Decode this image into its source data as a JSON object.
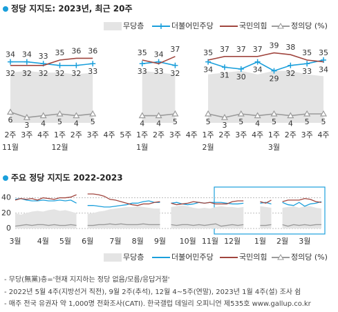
{
  "chart_data": [
    {
      "type": "line",
      "title": "정당 지지도: 2023년, 최근 20주",
      "categories": [
        "2주",
        "3주",
        "4주",
        "1주",
        "2주",
        "3주",
        "4주",
        "5주",
        "1주",
        "2주",
        "3주",
        "4주",
        "1주",
        "2주",
        "3주",
        "4주",
        "1주",
        "2주",
        "3주",
        "4주"
      ],
      "months": [
        "11월",
        null,
        null,
        "12월",
        null,
        null,
        null,
        null,
        "1월",
        null,
        null,
        null,
        "2월",
        null,
        null,
        null,
        "3월",
        null,
        null,
        null
      ],
      "ylim": [
        0,
        40
      ],
      "series": [
        {
          "name": "무당층",
          "color": "#e4e4e4",
          "kind": "area",
          "values": [
            28,
            29,
            28,
            28,
            27,
            28,
            null,
            null,
            29,
            28,
            27,
            null,
            27,
            28,
            29,
            27,
            29,
            29,
            27,
            26
          ]
        },
        {
          "name": "더불어민주당",
          "color": "#1a9fdb",
          "kind": "line",
          "marker": "plus",
          "labels": true,
          "values": [
            34,
            34,
            33,
            32,
            32,
            33,
            null,
            null,
            33,
            34,
            32,
            null,
            34,
            31,
            30,
            34,
            29,
            32,
            33,
            35
          ]
        },
        {
          "name": "국민의힘",
          "color": "#a0453e",
          "kind": "line",
          "labels": true,
          "values": [
            32,
            32,
            32,
            35,
            36,
            36,
            null,
            null,
            35,
            33,
            37,
            null,
            35,
            37,
            37,
            37,
            39,
            38,
            35,
            34
          ]
        },
        {
          "name": "정의당 (%)",
          "color": "#9a9a9a",
          "kind": "line",
          "marker": "triangle",
          "labels": true,
          "values": [
            6,
            3,
            4,
            5,
            4,
            5,
            null,
            null,
            4,
            4,
            5,
            null,
            5,
            3,
            5,
            4,
            5,
            4,
            5,
            5
          ]
        }
      ]
    },
    {
      "type": "line",
      "title": "주요 정당 지지도 2022-2023",
      "categories": [
        "3월",
        null,
        null,
        null,
        null,
        "4월",
        null,
        null,
        null,
        "5월",
        null,
        null,
        null,
        "6월",
        null,
        null,
        null,
        null,
        "7월",
        null,
        null,
        null,
        "8월",
        null,
        null,
        null,
        "9월",
        null,
        null,
        null,
        null,
        "10월",
        null,
        null,
        null,
        "11월",
        null,
        null,
        null,
        "12월",
        null,
        null,
        null,
        null,
        "1월",
        null,
        null,
        null,
        "2월",
        null,
        null,
        null,
        "3월",
        null,
        null,
        null
      ],
      "ylim": [
        0,
        45
      ],
      "yticks": [
        0,
        20,
        40
      ],
      "grid": true,
      "series": [
        {
          "name": "무당층",
          "color": "#e4e4e4",
          "kind": "area",
          "values": [
            20,
            18,
            20,
            22,
            23,
            22,
            24,
            25,
            23,
            24,
            22,
            20,
            null,
            19,
            20,
            22,
            23,
            25,
            26,
            27,
            28,
            28,
            29,
            28,
            27,
            26,
            26,
            null,
            28,
            29,
            30,
            29,
            27,
            26,
            27,
            26,
            28,
            29,
            28,
            28,
            27,
            28,
            null,
            null,
            29,
            28,
            27,
            null,
            27,
            28,
            29,
            27,
            29,
            29,
            27,
            26
          ]
        },
        {
          "name": "더불어민주당",
          "color": "#1a9fdb",
          "kind": "line",
          "values": [
            38,
            39,
            37,
            36,
            36,
            37,
            36,
            36,
            37,
            36,
            37,
            33,
            null,
            30,
            30,
            29,
            28,
            28,
            29,
            30,
            31,
            33,
            33,
            35,
            36,
            34,
            34,
            null,
            33,
            34,
            32,
            31,
            32,
            34,
            33,
            34,
            34,
            34,
            33,
            32,
            32,
            33,
            null,
            null,
            33,
            34,
            32,
            null,
            34,
            31,
            30,
            34,
            29,
            32,
            33,
            35
          ]
        },
        {
          "name": "국민의힘",
          "color": "#a0453e",
          "kind": "line",
          "values": [
            37,
            39,
            38,
            39,
            37,
            40,
            39,
            38,
            40,
            40,
            41,
            44,
            null,
            45,
            45,
            44,
            42,
            38,
            37,
            35,
            33,
            31,
            30,
            32,
            32,
            34,
            35,
            null,
            33,
            31,
            32,
            33,
            35,
            34,
            33,
            34,
            32,
            32,
            32,
            35,
            36,
            36,
            null,
            null,
            35,
            33,
            37,
            null,
            35,
            37,
            37,
            37,
            39,
            38,
            35,
            34
          ]
        },
        {
          "name": "정의당 (%)",
          "color": "#9a9a9a",
          "kind": "line",
          "marker": "triangle",
          "values": [
            3,
            4,
            5,
            4,
            5,
            5,
            4,
            5,
            4,
            4,
            5,
            4,
            null,
            4,
            4,
            5,
            5,
            6,
            5,
            6,
            5,
            5,
            5,
            6,
            5,
            5,
            5,
            null,
            5,
            4,
            5,
            5,
            4,
            5,
            4,
            5,
            6,
            3,
            4,
            5,
            4,
            5,
            null,
            null,
            4,
            4,
            5,
            null,
            5,
            3,
            5,
            4,
            5,
            4,
            5,
            5
          ]
        }
      ]
    }
  ],
  "notes": [
    "- 무당(無黨)층='현재 지지하는 정당 없음/모름/응답거절'",
    "- 2022년 5월 4주(지방선거 직전), 9월 2주(추석), 12월 4~5주(연말), 2023년 1월 4주(설) 조사 쉼",
    "- 매주 전국 유권자 약 1,000명 전화조사(CATI). 한국갤럽 데일리 오피니언 제535호 www.gallup.co.kr"
  ]
}
